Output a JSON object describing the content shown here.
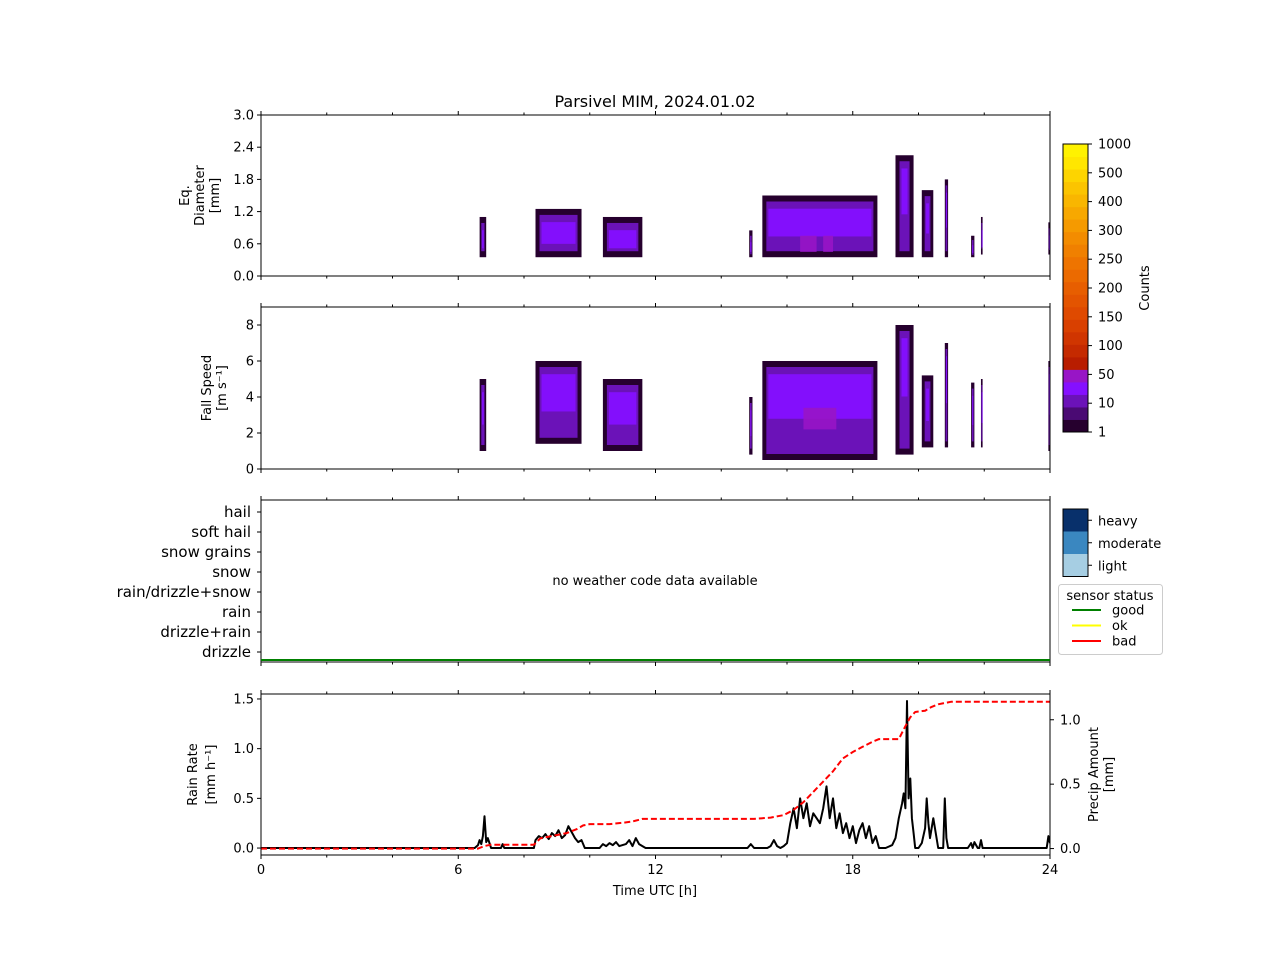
{
  "title": "Parsivel MIM, 2024.01.02",
  "chart_data": [
    {
      "type": "heatmap",
      "panel": "diameter",
      "ylabel": [
        "Eq.",
        "Diameter",
        "[mm]"
      ],
      "ylim": [
        0,
        3.0
      ],
      "yticks": [
        "0.0",
        "0.6",
        "1.2",
        "1.8",
        "2.4",
        "3.0"
      ],
      "xlim": [
        0,
        24
      ],
      "blocks": [
        {
          "x": [
            6.65,
            6.85
          ],
          "y": [
            0.35,
            1.1
          ],
          "level": 2
        },
        {
          "x": [
            8.35,
            9.75
          ],
          "y": [
            0.35,
            1.25
          ],
          "level": 2
        },
        {
          "x": [
            10.4,
            11.6
          ],
          "y": [
            0.35,
            1.1
          ],
          "level": 2
        },
        {
          "x": [
            14.85,
            14.95
          ],
          "y": [
            0.35,
            0.85
          ],
          "level": 2
        },
        {
          "x": [
            15.25,
            18.75
          ],
          "y": [
            0.35,
            1.5
          ],
          "level": 2
        },
        {
          "x": [
            16.4,
            16.9
          ],
          "y": [
            0.45,
            0.75
          ],
          "level": 3
        },
        {
          "x": [
            17.1,
            17.4
          ],
          "y": [
            0.45,
            0.75
          ],
          "level": 3
        },
        {
          "x": [
            19.3,
            19.85
          ],
          "y": [
            0.35,
            2.25
          ],
          "level": 2
        },
        {
          "x": [
            20.1,
            20.45
          ],
          "y": [
            0.35,
            1.6
          ],
          "level": 2
        },
        {
          "x": [
            20.8,
            20.9
          ],
          "y": [
            0.35,
            1.8
          ],
          "level": 2
        },
        {
          "x": [
            21.6,
            21.7
          ],
          "y": [
            0.35,
            0.75
          ],
          "level": 2
        },
        {
          "x": [
            21.9,
            21.95
          ],
          "y": [
            0.4,
            1.1
          ],
          "level": 2
        },
        {
          "x": [
            23.95,
            24.0
          ],
          "y": [
            0.4,
            1.0
          ],
          "level": 2
        }
      ]
    },
    {
      "type": "heatmap",
      "panel": "fallspeed",
      "ylabel": [
        "Fall Speed",
        "[m s⁻¹]"
      ],
      "ylim": [
        0,
        9
      ],
      "yticks": [
        "0",
        "2",
        "4",
        "6",
        "8"
      ],
      "xlim": [
        0,
        24
      ],
      "blocks": [
        {
          "x": [
            6.65,
            6.85
          ],
          "y": [
            1.0,
            5.0
          ],
          "level": 2
        },
        {
          "x": [
            8.35,
            9.75
          ],
          "y": [
            1.4,
            6.0
          ],
          "level": 2
        },
        {
          "x": [
            10.4,
            11.6
          ],
          "y": [
            1.0,
            5.0
          ],
          "level": 2
        },
        {
          "x": [
            14.85,
            14.95
          ],
          "y": [
            0.8,
            4.0
          ],
          "level": 2
        },
        {
          "x": [
            15.25,
            18.75
          ],
          "y": [
            0.5,
            6.0
          ],
          "level": 2
        },
        {
          "x": [
            16.5,
            17.5
          ],
          "y": [
            2.2,
            3.4
          ],
          "level": 3
        },
        {
          "x": [
            19.3,
            19.85
          ],
          "y": [
            0.8,
            8.0
          ],
          "level": 2
        },
        {
          "x": [
            20.1,
            20.45
          ],
          "y": [
            1.2,
            5.2
          ],
          "level": 2
        },
        {
          "x": [
            20.8,
            20.9
          ],
          "y": [
            1.2,
            7.0
          ],
          "level": 2
        },
        {
          "x": [
            21.6,
            21.7
          ],
          "y": [
            1.2,
            4.8
          ],
          "level": 2
        },
        {
          "x": [
            21.9,
            21.95
          ],
          "y": [
            1.2,
            5.0
          ],
          "level": 2
        },
        {
          "x": [
            23.95,
            24.0
          ],
          "y": [
            1.0,
            6.0
          ],
          "level": 2
        }
      ]
    },
    {
      "type": "other",
      "panel": "weather_code",
      "categories": [
        "drizzle",
        "drizzle+rain",
        "rain",
        "rain/drizzle+snow",
        "snow",
        "snow grains",
        "soft hail",
        "hail"
      ],
      "message": "no weather code data available",
      "sensor_status": "good",
      "intensity_legend": [
        "light",
        "moderate",
        "heavy"
      ],
      "intensity_colors": [
        "#a6cee3",
        "#3a87c0",
        "#08306b"
      ],
      "status_legend_title": "sensor status",
      "status_legend": [
        {
          "label": "good",
          "color": "#008000"
        },
        {
          "label": "ok",
          "color": "#ffff00"
        },
        {
          "label": "bad",
          "color": "#ff0000"
        }
      ]
    },
    {
      "type": "line",
      "panel": "rainrate",
      "ylabel": [
        "Rain Rate",
        "[mm h⁻¹]"
      ],
      "y2label": [
        "Precip Amount",
        "[mm]"
      ],
      "ylim": [
        -0.07,
        1.55
      ],
      "y2lim": [
        -0.05,
        1.2
      ],
      "yticks": [
        "0.0",
        "0.5",
        "1.0",
        "1.5"
      ],
      "y2ticks": [
        "0.0",
        "0.5",
        "1.0"
      ],
      "xlim": [
        0,
        24
      ],
      "xticks": [
        "0",
        "6",
        "12",
        "18",
        "24"
      ],
      "xlabel": "Time UTC [h]",
      "series": [
        {
          "axis": "left",
          "color": "#000000",
          "x": [
            0,
            6.5,
            6.6,
            6.65,
            6.7,
            6.75,
            6.8,
            6.85,
            6.9,
            7.0,
            7.3,
            7.35,
            7.4,
            7.5,
            8.3,
            8.35,
            8.45,
            8.55,
            8.65,
            8.75,
            8.85,
            8.95,
            9.05,
            9.15,
            9.25,
            9.35,
            9.45,
            9.55,
            9.65,
            9.75,
            9.85,
            10.0,
            10.3,
            10.4,
            10.5,
            10.6,
            10.7,
            10.8,
            10.9,
            11.0,
            11.1,
            11.2,
            11.3,
            11.4,
            11.5,
            11.6,
            11.7,
            12.0,
            14.8,
            14.9,
            15.0,
            15.2,
            15.4,
            15.5,
            15.6,
            15.7,
            15.8,
            15.9,
            16.0,
            16.1,
            16.2,
            16.3,
            16.4,
            16.5,
            16.6,
            16.7,
            16.8,
            16.9,
            17.0,
            17.1,
            17.2,
            17.3,
            17.4,
            17.5,
            17.6,
            17.7,
            17.8,
            17.9,
            18.0,
            18.1,
            18.2,
            18.3,
            18.4,
            18.5,
            18.6,
            18.7,
            18.8,
            19.0,
            19.2,
            19.3,
            19.4,
            19.5,
            19.55,
            19.6,
            19.65,
            19.7,
            19.75,
            19.8,
            19.85,
            19.9,
            20.0,
            20.1,
            20.2,
            20.25,
            20.3,
            20.35,
            20.45,
            20.6,
            20.75,
            20.8,
            20.85,
            20.9,
            21.0,
            21.5,
            21.6,
            21.65,
            21.7,
            21.8,
            21.85,
            21.9,
            21.95,
            22.0,
            23.9,
            23.95,
            24.0
          ],
          "y": [
            0.0,
            0.0,
            0.03,
            0.08,
            0.04,
            0.12,
            0.32,
            0.06,
            0.1,
            0.0,
            0.0,
            0.04,
            0.0,
            0.0,
            0.0,
            0.08,
            0.12,
            0.1,
            0.14,
            0.09,
            0.15,
            0.12,
            0.18,
            0.1,
            0.13,
            0.22,
            0.16,
            0.1,
            0.06,
            0.08,
            0.0,
            0.0,
            0.0,
            0.04,
            0.02,
            0.05,
            0.03,
            0.06,
            0.02,
            0.03,
            0.04,
            0.08,
            0.02,
            0.1,
            0.04,
            0.02,
            0.0,
            0.0,
            0.0,
            0.04,
            0.0,
            0.0,
            0.0,
            0.02,
            0.08,
            0.02,
            0.0,
            0.02,
            0.05,
            0.25,
            0.4,
            0.2,
            0.5,
            0.3,
            0.45,
            0.22,
            0.35,
            0.3,
            0.25,
            0.4,
            0.62,
            0.3,
            0.5,
            0.2,
            0.35,
            0.15,
            0.25,
            0.1,
            0.22,
            0.05,
            0.18,
            0.25,
            0.1,
            0.22,
            0.05,
            0.12,
            0.0,
            0.0,
            0.03,
            0.1,
            0.3,
            0.45,
            0.55,
            0.4,
            1.48,
            0.5,
            0.7,
            0.3,
            0.15,
            0.0,
            0.0,
            0.05,
            0.2,
            0.5,
            0.25,
            0.1,
            0.3,
            0.0,
            0.0,
            0.5,
            0.1,
            0.0,
            0.0,
            0.0,
            0.05,
            0.0,
            0.06,
            0.0,
            0.0,
            0.08,
            0.0,
            0.0,
            0.0,
            0.12,
            0.05
          ]
        },
        {
          "axis": "right",
          "style": "dashed",
          "color": "#ff0000",
          "x": [
            0,
            6.6,
            6.8,
            7.0,
            8.3,
            8.5,
            8.9,
            9.3,
            9.6,
            9.8,
            10.0,
            10.6,
            11.0,
            11.3,
            11.6,
            12.0,
            15.0,
            15.5,
            15.9,
            16.2,
            16.5,
            16.8,
            17.1,
            17.4,
            17.7,
            18.0,
            18.3,
            18.6,
            18.8,
            19.4,
            19.5,
            19.6,
            19.75,
            19.9,
            20.2,
            20.4,
            20.6,
            20.8,
            21.0,
            24.0
          ],
          "y": [
            0.0,
            0.0,
            0.02,
            0.03,
            0.03,
            0.08,
            0.1,
            0.12,
            0.15,
            0.18,
            0.19,
            0.19,
            0.2,
            0.21,
            0.23,
            0.23,
            0.23,
            0.24,
            0.26,
            0.3,
            0.36,
            0.44,
            0.52,
            0.6,
            0.7,
            0.75,
            0.79,
            0.83,
            0.85,
            0.85,
            0.9,
            0.95,
            1.02,
            1.06,
            1.07,
            1.1,
            1.12,
            1.13,
            1.14,
            1.14
          ]
        }
      ]
    },
    {
      "type": "other",
      "panel": "colorbar",
      "label": "Counts",
      "tick_labels": [
        "1",
        "10",
        "50",
        "100",
        "150",
        "200",
        "250",
        "300",
        "400",
        "500",
        "1000"
      ],
      "colors": [
        "#26002e",
        "#4a0a73",
        "#6b12b8",
        "#8510ff",
        "#9815c6",
        "#b81d00",
        "#c52a00",
        "#d03500",
        "#d94000",
        "#df4a00",
        "#e35400",
        "#e75e00",
        "#eb6a00",
        "#ee7400",
        "#f08000",
        "#f38c00",
        "#f59a00",
        "#f7a800",
        "#f9b600",
        "#fbc400",
        "#fdd400",
        "#ffe600",
        "#fff200"
      ]
    }
  ]
}
